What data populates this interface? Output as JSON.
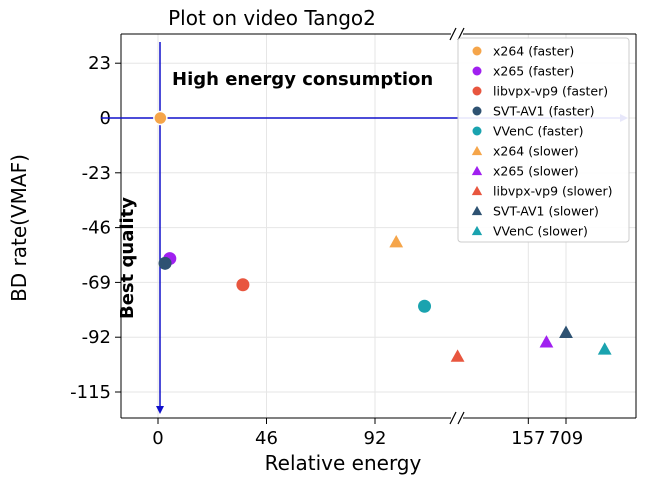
{
  "chart_data": {
    "type": "scatter",
    "title": "Plot on video Tango2",
    "xlabel": "Relative energy",
    "ylabel": "BD rate(VMAF)",
    "x_axis": {
      "broken": true,
      "segments": [
        {
          "range": [
            -26,
            157
          ],
          "ticks": [
            0,
            46,
            92,
            157
          ]
        },
        {
          "range": [
            157,
            920
          ],
          "ticks": [
            709
          ]
        }
      ]
    },
    "ylim": [
      -127,
      36
    ],
    "yticks": [
      23,
      0,
      -23,
      -46,
      -69,
      -92,
      -115
    ],
    "grid": true,
    "legend_position": "top-right",
    "annotations": [
      {
        "text": "High energy consumption"
      },
      {
        "text": "Best quality"
      }
    ],
    "series": [
      {
        "name": "x264 (faster)",
        "marker": "circle",
        "color": "#F5A54A",
        "points": [
          [
            1,
            0
          ]
        ]
      },
      {
        "name": "x265 (faster)",
        "marker": "circle",
        "color": "#A020F0",
        "points": [
          [
            5,
            -59
          ]
        ]
      },
      {
        "name": "libvpx-vp9 (faster)",
        "marker": "circle",
        "color": "#E8563F",
        "points": [
          [
            36,
            -70
          ]
        ]
      },
      {
        "name": "SVT-AV1 (faster)",
        "marker": "circle",
        "color": "#2E5272",
        "points": [
          [
            3,
            -61
          ]
        ]
      },
      {
        "name": "VVenC (faster)",
        "marker": "circle",
        "color": "#1AA3AF",
        "points": [
          [
            113,
            -79
          ]
        ]
      },
      {
        "name": "x264 (slower)",
        "marker": "triangle",
        "color": "#F5A54A",
        "points": [
          [
            101,
            -52
          ]
        ]
      },
      {
        "name": "x265 (slower)",
        "marker": "triangle",
        "color": "#A020F0",
        "points": [
          [
            610,
            -94
          ]
        ]
      },
      {
        "name": "libvpx-vp9 (slower)",
        "marker": "triangle",
        "color": "#E8563F",
        "points": [
          [
            160,
            -100
          ]
        ]
      },
      {
        "name": "SVT-AV1 (slower)",
        "marker": "triangle",
        "color": "#2E5272",
        "points": [
          [
            709,
            -90
          ]
        ]
      },
      {
        "name": "VVenC (slower)",
        "marker": "triangle",
        "color": "#1AA3AF",
        "points": [
          [
            905,
            -97
          ]
        ]
      }
    ]
  }
}
